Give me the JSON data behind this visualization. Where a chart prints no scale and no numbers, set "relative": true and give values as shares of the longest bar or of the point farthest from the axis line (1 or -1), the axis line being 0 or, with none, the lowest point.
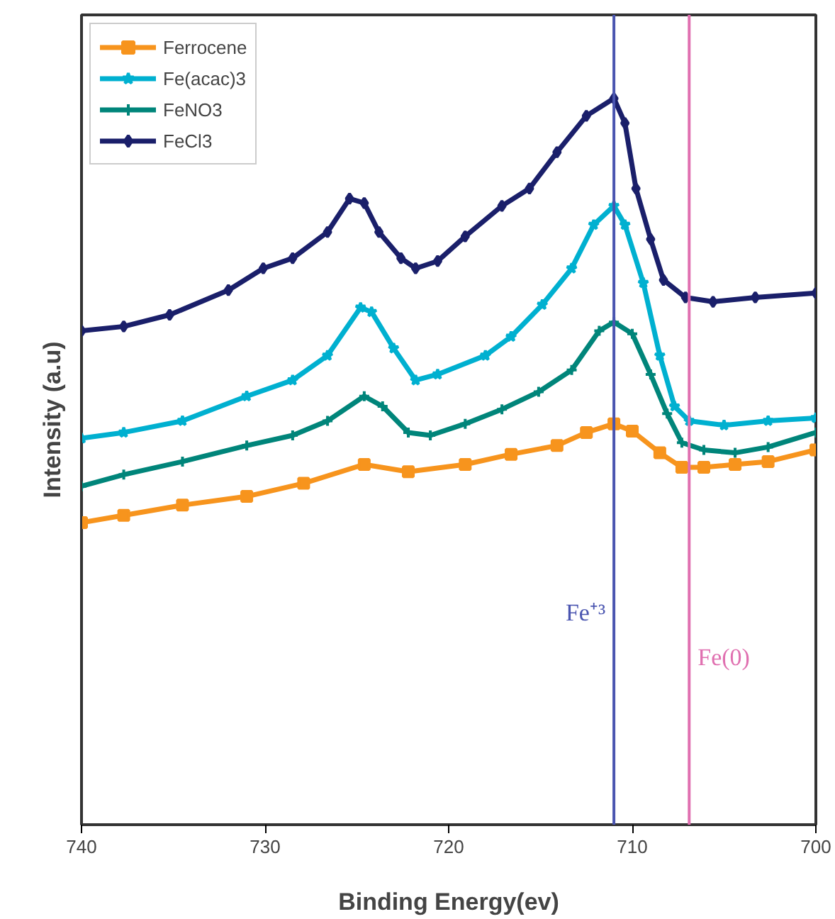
{
  "chart_data": {
    "type": "line",
    "xlabel": "Binding Energy(ev)",
    "ylabel": "Intensity (a.u)",
    "relative": true,
    "xlim": [
      740,
      700
    ],
    "xticks": [
      740,
      730,
      720,
      710,
      700
    ],
    "grid": false,
    "legend": "top left",
    "line_style": "solid",
    "ref_lines": [
      {
        "axis": "x",
        "value": 711.0,
        "label": "Fe⁺³",
        "color": "#4a55b0"
      },
      {
        "axis": "x",
        "value": 706.9,
        "label": "Fe(0)",
        "color": "#e070b0"
      }
    ],
    "series": [
      {
        "name": "Ferrocene",
        "color": "#f7941d",
        "marker": "square",
        "x": [
          740,
          737.7,
          734.5,
          731,
          727.9,
          724.6,
          722.2,
          719.1,
          716.6,
          714.1,
          712.5,
          711.0,
          710.0,
          708.5,
          707.3,
          706.1,
          704.4,
          702.6,
          700
        ],
        "values": [
          0.416,
          0.426,
          0.44,
          0.452,
          0.47,
          0.496,
          0.486,
          0.496,
          0.51,
          0.522,
          0.54,
          0.552,
          0.542,
          0.512,
          0.492,
          0.492,
          0.496,
          0.5,
          0.516
        ]
      },
      {
        "name": "Fe(acac)3",
        "color": "#00b0d0",
        "marker": "star",
        "x": [
          740,
          737.7,
          734.5,
          731,
          728.5,
          726.6,
          724.8,
          724.2,
          723,
          721.8,
          720.6,
          718,
          716.6,
          714.9,
          713.3,
          712.1,
          711.0,
          710.4,
          709.4,
          708.5,
          707.7,
          706.9,
          705.0,
          702.6,
          700
        ],
        "values": [
          0.532,
          0.54,
          0.556,
          0.59,
          0.612,
          0.646,
          0.712,
          0.706,
          0.656,
          0.612,
          0.62,
          0.646,
          0.672,
          0.716,
          0.766,
          0.826,
          0.852,
          0.826,
          0.746,
          0.646,
          0.576,
          0.556,
          0.55,
          0.556,
          0.56
        ]
      },
      {
        "name": "FeNO3",
        "color": "#00857a",
        "marker": "cross",
        "x": [
          740,
          737.7,
          734.5,
          731,
          728.5,
          726.6,
          724.6,
          723.6,
          722.2,
          721.0,
          719.1,
          717.1,
          715.1,
          713.3,
          711.8,
          711.0,
          710.0,
          709.0,
          708.1,
          707.3,
          706.1,
          704.4,
          702.6,
          700
        ],
        "values": [
          0.466,
          0.482,
          0.5,
          0.522,
          0.536,
          0.556,
          0.59,
          0.576,
          0.54,
          0.536,
          0.552,
          0.572,
          0.596,
          0.626,
          0.68,
          0.692,
          0.676,
          0.62,
          0.566,
          0.526,
          0.516,
          0.512,
          0.52,
          0.54
        ]
      },
      {
        "name": "FeCl3",
        "color": "#1a1f6a",
        "marker": "diamond",
        "x": [
          740,
          737.7,
          735.2,
          732,
          730.1,
          728.5,
          726.6,
          725.4,
          724.6,
          723.8,
          722.6,
          721.8,
          720.6,
          719.1,
          717.1,
          715.6,
          714.1,
          712.5,
          711.0,
          710.4,
          709.8,
          709.0,
          708.3,
          707.1,
          705.6,
          703.3,
          700
        ],
        "values": [
          0.68,
          0.686,
          0.702,
          0.736,
          0.766,
          0.78,
          0.816,
          0.862,
          0.856,
          0.816,
          0.78,
          0.766,
          0.776,
          0.81,
          0.852,
          0.876,
          0.926,
          0.976,
          1.0,
          0.966,
          0.876,
          0.806,
          0.75,
          0.726,
          0.72,
          0.726,
          0.732
        ]
      }
    ]
  }
}
